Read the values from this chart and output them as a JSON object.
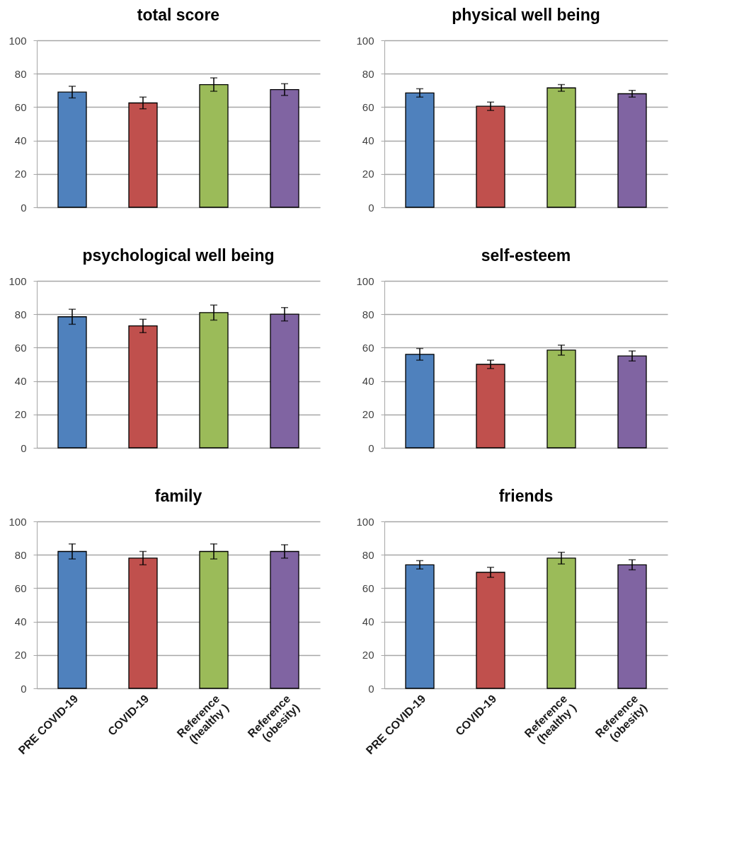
{
  "chart_data": [
    {
      "type": "bar",
      "title": "total score",
      "categories": [
        null,
        null,
        null,
        null
      ],
      "values": [
        69,
        62.5,
        73.5,
        70.5
      ],
      "errors": [
        3.5,
        3.5,
        4,
        3.5
      ],
      "colors": [
        "#4f81bd",
        "#c0504d",
        "#9bbb59",
        "#8064a2"
      ],
      "ylim": [
        0,
        100
      ],
      "yticks": [
        0,
        20,
        40,
        60,
        80,
        100
      ],
      "grid": "y"
    },
    {
      "type": "bar",
      "title": "physical well being",
      "categories": [
        null,
        null,
        null,
        null
      ],
      "values": [
        68.5,
        60.5,
        71.5,
        68
      ],
      "errors": [
        2.5,
        2.5,
        2,
        2
      ],
      "colors": [
        "#4f81bd",
        "#c0504d",
        "#9bbb59",
        "#8064a2"
      ],
      "ylim": [
        0,
        100
      ],
      "yticks": [
        0,
        20,
        40,
        60,
        80,
        100
      ],
      "grid": "y"
    },
    {
      "type": "bar",
      "title": "psychological well being",
      "categories": [
        null,
        null,
        null,
        null
      ],
      "values": [
        78.5,
        73,
        81,
        80
      ],
      "errors": [
        4.5,
        4,
        4.5,
        4
      ],
      "colors": [
        "#4f81bd",
        "#c0504d",
        "#9bbb59",
        "#8064a2"
      ],
      "ylim": [
        0,
        100
      ],
      "yticks": [
        0,
        20,
        40,
        60,
        80,
        100
      ],
      "grid": "y"
    },
    {
      "type": "bar",
      "title": "self-esteem",
      "categories": [
        null,
        null,
        null,
        null
      ],
      "values": [
        56,
        50,
        58.5,
        55
      ],
      "errors": [
        3.5,
        2.5,
        3,
        3
      ],
      "colors": [
        "#4f81bd",
        "#c0504d",
        "#9bbb59",
        "#8064a2"
      ],
      "ylim": [
        0,
        100
      ],
      "yticks": [
        0,
        20,
        40,
        60,
        80,
        100
      ],
      "grid": "y"
    },
    {
      "type": "bar",
      "title": "family",
      "categories": [
        "PRE COVID-19",
        "COVID-19",
        "Reference\n(healthy )",
        "Reference\n(obesity)"
      ],
      "values": [
        82,
        78,
        82,
        82
      ],
      "errors": [
        4.5,
        4,
        4.5,
        4
      ],
      "colors": [
        "#4f81bd",
        "#c0504d",
        "#9bbb59",
        "#8064a2"
      ],
      "ylim": [
        0,
        100
      ],
      "yticks": [
        0,
        20,
        40,
        60,
        80,
        100
      ],
      "grid": "y"
    },
    {
      "type": "bar",
      "title": "friends",
      "categories": [
        "PRE COVID-19",
        "COVID-19",
        "Reference\n(healthy )",
        "Reference\n(obesity)"
      ],
      "values": [
        74,
        69.5,
        78,
        74
      ],
      "errors": [
        2.5,
        3,
        3.5,
        3
      ],
      "colors": [
        "#4f81bd",
        "#c0504d",
        "#9bbb59",
        "#8064a2"
      ],
      "ylim": [
        0,
        100
      ],
      "yticks": [
        0,
        20,
        40,
        60,
        80,
        100
      ],
      "grid": "y"
    }
  ]
}
